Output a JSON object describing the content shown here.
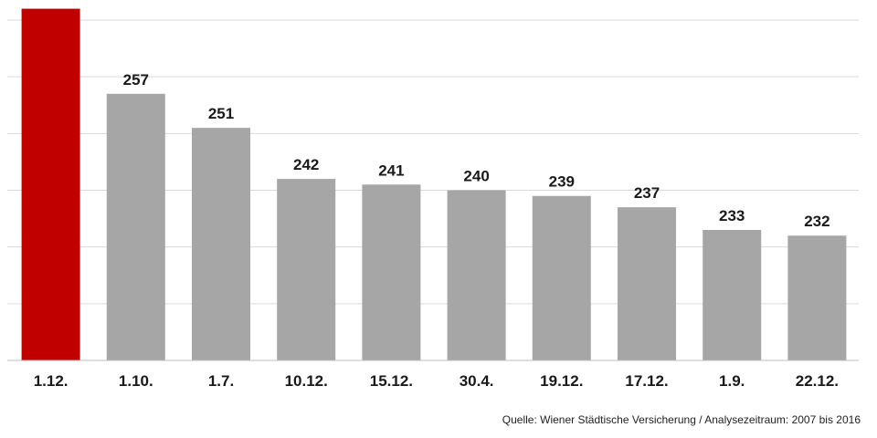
{
  "chart_data": {
    "type": "bar",
    "categories": [
      "1.12.",
      "1.10.",
      "1.7.",
      "10.12.",
      "15.12.",
      "30.4.",
      "19.12.",
      "17.12.",
      "1.9.",
      "22.12."
    ],
    "values": [
      272,
      257,
      251,
      242,
      241,
      240,
      239,
      237,
      233,
      232
    ],
    "title": "",
    "xlabel": "",
    "ylabel": "",
    "ylim": [
      210,
      270
    ],
    "grid": true,
    "legend": "none",
    "highlight_index": 0,
    "colors": {
      "highlight": "#c00000",
      "bar": "#a6a6a6",
      "grid": "#d9d9d9",
      "axis": "#bfbfbf"
    }
  },
  "source_note": "Quelle: Wiener Städtische Versicherung / Analysezeitraum: 2007 bis 2016"
}
